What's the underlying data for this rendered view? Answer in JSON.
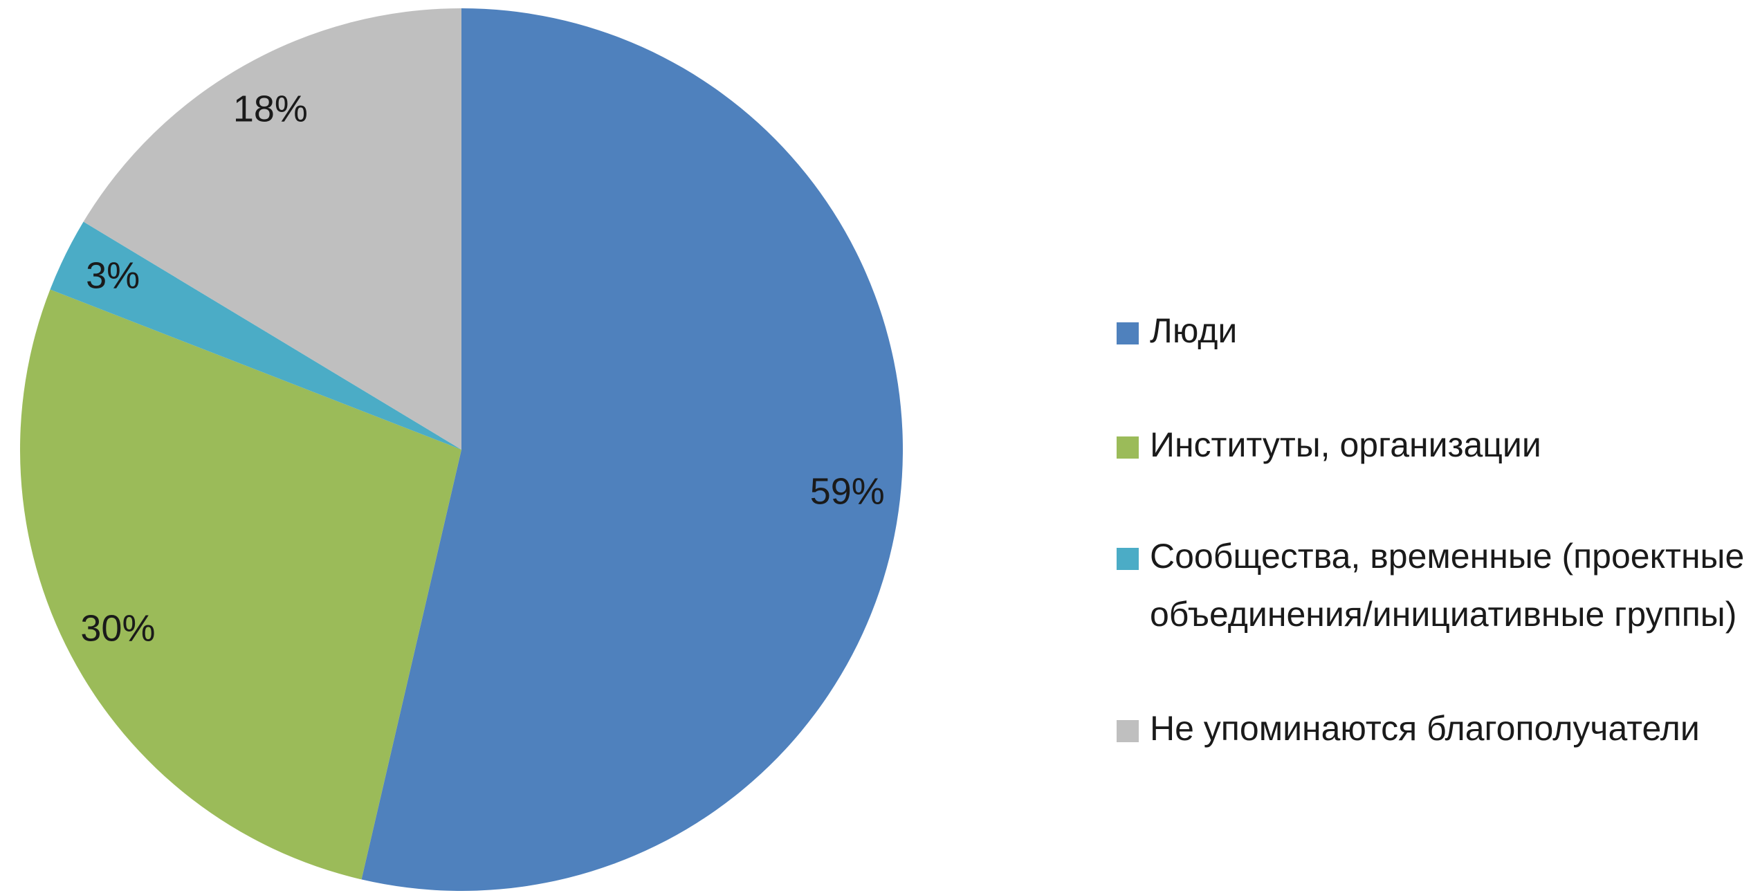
{
  "chart_data": {
    "type": "pie",
    "series": [
      {
        "name": "Люди",
        "color": "#4f81bd",
        "value": 59,
        "value_label": "59%"
      },
      {
        "name": "Институты, организации",
        "color": "#9bbb59",
        "value": 30,
        "value_label": "30%"
      },
      {
        "name": "Сообщества, временные (проектные объединения/инициативные группы)",
        "color": "#4bacc6",
        "value": 3,
        "value_label": "3%"
      },
      {
        "name": "Не упоминаются благополучатели",
        "color": "#bfbfbf",
        "value": 18,
        "value_label": "18%"
      }
    ],
    "legend": "right"
  }
}
